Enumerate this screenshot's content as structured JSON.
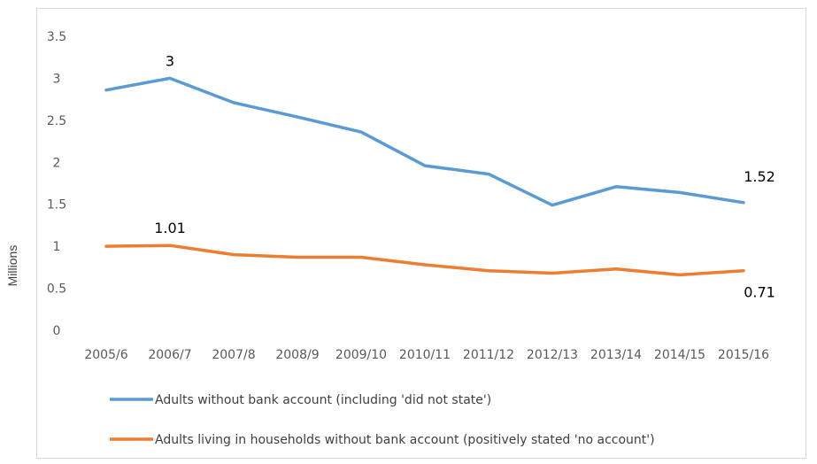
{
  "chart_data": {
    "type": "line",
    "title": "",
    "xlabel": "",
    "ylabel": "Millions",
    "ylim": [
      0,
      3.5
    ],
    "yticks": [
      "0",
      "0.5",
      "1",
      "1.5",
      "2",
      "2.5",
      "3",
      "3.5"
    ],
    "categories": [
      "2005/6",
      "2006/7",
      "2007/8",
      "2008/9",
      "2009/10",
      "2010/11",
      "2011/12",
      "2012/13",
      "2013/14",
      "2014/15",
      "2015/16"
    ],
    "grid": false,
    "legend_position": "bottom",
    "series": [
      {
        "name": "Adults without bank account (including 'did not state')",
        "color": "#5b9bd5",
        "values": [
          2.86,
          3.0,
          2.71,
          2.54,
          2.36,
          1.96,
          1.86,
          1.49,
          1.71,
          1.64,
          1.52
        ],
        "data_labels": [
          {
            "index": 1,
            "text": "3"
          },
          {
            "index": 10,
            "text": "1.52"
          }
        ]
      },
      {
        "name": "Adults living in households without bank account (positively stated 'no account')",
        "color": "#ed7d31",
        "values": [
          1.0,
          1.01,
          0.9,
          0.87,
          0.87,
          0.78,
          0.71,
          0.68,
          0.73,
          0.66,
          0.71
        ],
        "data_labels": [
          {
            "index": 1,
            "text": "1.01"
          },
          {
            "index": 10,
            "text": "0.71"
          }
        ]
      }
    ]
  }
}
